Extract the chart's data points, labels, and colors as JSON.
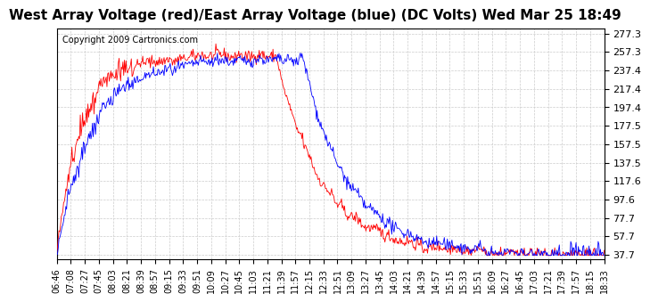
{
  "title": "West Array Voltage (red)/East Array Voltage (blue) (DC Volts) Wed Mar 25 18:49",
  "copyright": "Copyright 2009 Cartronics.com",
  "y_ticks": [
    37.7,
    57.7,
    77.7,
    97.6,
    117.6,
    137.5,
    157.5,
    177.5,
    197.4,
    217.4,
    237.4,
    257.3,
    277.3
  ],
  "x_labels": [
    "06:46",
    "07:08",
    "07:27",
    "07:45",
    "08:03",
    "08:21",
    "08:39",
    "08:57",
    "09:15",
    "09:33",
    "09:51",
    "10:09",
    "10:27",
    "10:45",
    "11:03",
    "11:21",
    "11:39",
    "11:57",
    "12:15",
    "12:33",
    "12:51",
    "13:09",
    "13:27",
    "13:45",
    "14:03",
    "14:21",
    "14:39",
    "14:57",
    "15:15",
    "15:33",
    "15:51",
    "16:09",
    "16:27",
    "16:45",
    "17:03",
    "17:21",
    "17:39",
    "17:57",
    "18:15",
    "18:33"
  ],
  "color_red": "#ff0000",
  "color_blue": "#0000ff",
  "background": "#ffffff",
  "grid_color": "#cccccc",
  "title_fontsize": 11,
  "copyright_fontsize": 7,
  "tick_fontsize": 8,
  "y_min": 37.7,
  "y_max": 277.3,
  "seed": 42
}
